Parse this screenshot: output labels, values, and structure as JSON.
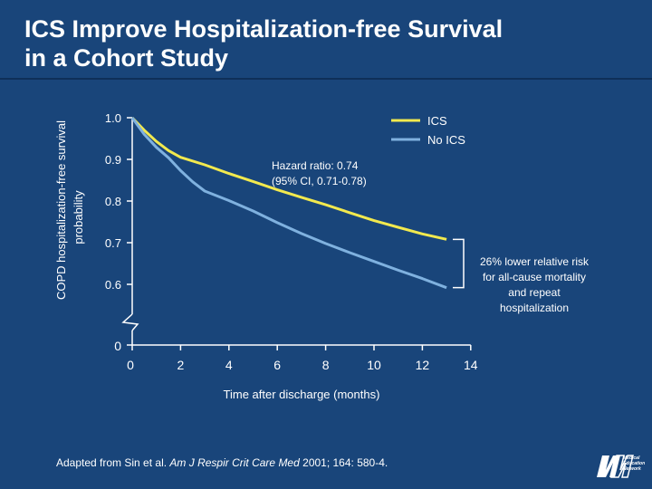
{
  "slide": {
    "title_line1": "ICS Improve Hospitalization-free Survival",
    "title_line2": "in a Cohort Study",
    "footnote_prefix": "Adapted from Sin et al.",
    "footnote_journal": "Am J Respir Crit Care Med",
    "footnote_suffix": "2001; 164: 580-4.",
    "logo_text": [
      "Medical",
      "Education",
      "Network"
    ]
  },
  "chart_data": {
    "type": "line",
    "ylabel_line1": "COPD hospitalization-free survival",
    "ylabel_line2": "probability",
    "xlabel": "Time after discharge (months)",
    "y_ticks": [
      "1.0",
      "0.9",
      "0.8",
      "0.7",
      "0.6"
    ],
    "y_zero_label": "0",
    "x_ticks": [
      "0",
      "2",
      "4",
      "6",
      "8",
      "10",
      "12",
      "14"
    ],
    "ylim": [
      0.55,
      1.0
    ],
    "y_axis_break": true,
    "xlim": [
      0,
      14
    ],
    "legend_position": "top-right",
    "series": [
      {
        "name": "ICS",
        "color": "#f2e94e",
        "x": [
          0,
          0.5,
          1,
          1.5,
          2,
          3,
          4,
          5,
          6,
          7,
          8,
          9,
          10,
          11,
          12,
          13
        ],
        "y": [
          1.0,
          0.97,
          0.943,
          0.921,
          0.905,
          0.887,
          0.866,
          0.847,
          0.827,
          0.809,
          0.791,
          0.772,
          0.753,
          0.737,
          0.721,
          0.708
        ]
      },
      {
        "name": "No ICS",
        "color": "#7fb1df",
        "x": [
          0,
          0.5,
          1,
          1.5,
          2,
          2.5,
          3,
          4,
          5,
          6,
          7,
          8,
          9,
          10,
          11,
          12,
          13
        ],
        "y": [
          1.0,
          0.96,
          0.929,
          0.904,
          0.873,
          0.846,
          0.824,
          0.801,
          0.776,
          0.748,
          0.722,
          0.698,
          0.676,
          0.655,
          0.634,
          0.614,
          0.592
        ]
      }
    ],
    "annotation_hr_line1": "Hazard ratio: 0.74",
    "annotation_hr_line2": "(95% CI, 0.71-0.78)",
    "annotation_risk": [
      "26% lower relative risk",
      "for all-cause mortality",
      "and repeat",
      "hospitalization"
    ]
  }
}
